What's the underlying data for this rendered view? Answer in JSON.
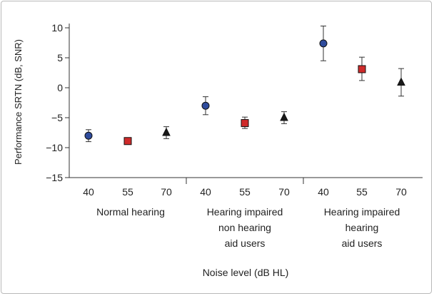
{
  "chart_data": {
    "type": "scatter",
    "ylabel": "Performance SRTN (dB, SNR)",
    "xlabel": "Noise level (dB HL)",
    "ylim": [
      -15,
      12
    ],
    "yticks": [
      10,
      5,
      0,
      -5,
      -10,
      -15
    ],
    "groups": [
      {
        "name": "Normal hearing",
        "label_lines": [
          "Normal hearing"
        ]
      },
      {
        "name": "Hearing impaired non hearing aid users",
        "label_lines": [
          "Hearing impaired",
          "non hearing",
          "aid users"
        ]
      },
      {
        "name": "Hearing impaired hearing aid users",
        "label_lines": [
          "Hearing impaired",
          "hearing",
          "aid users"
        ]
      }
    ],
    "noise_levels": [
      "40",
      "55",
      "70"
    ],
    "series": [
      {
        "name": "40",
        "marker": "circle",
        "color": "#2e4b9c",
        "values": [
          -8.0,
          -3.0,
          7.4
        ],
        "err_low": [
          -9.0,
          -4.5,
          4.5
        ],
        "err_high": [
          -7.0,
          -1.5,
          10.3
        ]
      },
      {
        "name": "55",
        "marker": "square",
        "color": "#cf2a2a",
        "values": [
          -8.9,
          -5.9,
          3.1
        ],
        "err_low": [
          -9.3,
          -6.8,
          1.2
        ],
        "err_high": [
          -8.5,
          -4.9,
          5.1
        ]
      },
      {
        "name": "70",
        "marker": "triangle",
        "color": "#1a1a1a",
        "values": [
          -7.5,
          -5.0,
          0.9
        ],
        "err_low": [
          -8.5,
          -6.0,
          -1.4
        ],
        "err_high": [
          -6.5,
          -4.0,
          3.2
        ]
      }
    ]
  }
}
